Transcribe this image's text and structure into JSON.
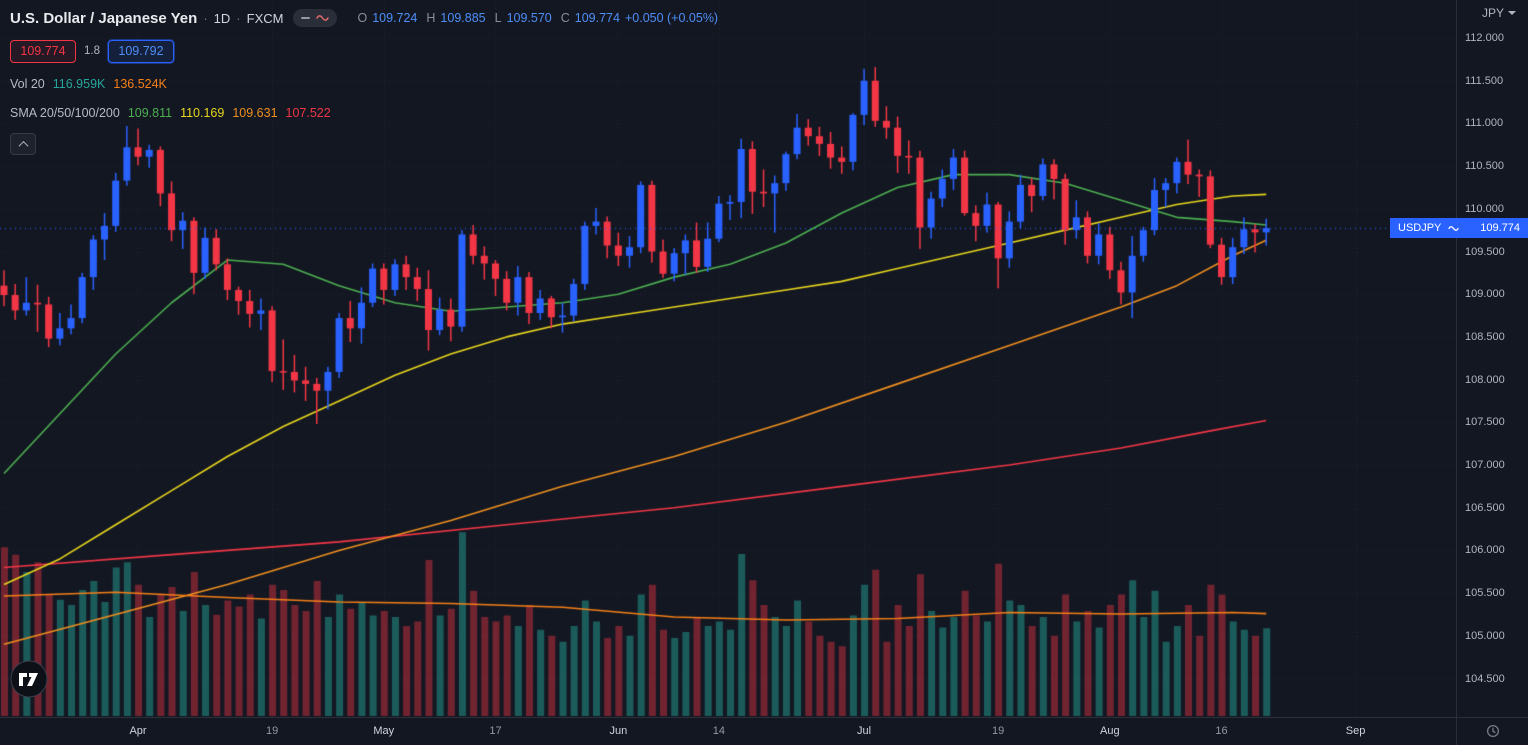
{
  "colors": {
    "background": "#131722",
    "up": "#2962ff",
    "down": "#f23645",
    "text_blue": "#4e8ef7",
    "vol_up": "rgba(34,150,138,0.55)",
    "vol_down": "rgba(242,54,69,0.42)",
    "sma20": "#4caf50",
    "sma50": "#e7d51c",
    "sma100": "#ef8f1f",
    "sma200": "#f23645",
    "vol_ma": "#f57f17",
    "axis_text": "#b2b5be",
    "grid": "rgba(178,181,190,0.09)"
  },
  "header": {
    "symbol_title": "U.S. Dollar / Japanese Yen",
    "separator": "·",
    "interval": "1D",
    "exchange": "FXCM",
    "status_icons": [
      "minus-icon",
      "wave-icon"
    ],
    "ohlc": {
      "o_label": "O",
      "o": "109.724",
      "h_label": "H",
      "h": "109.885",
      "l_label": "L",
      "l": "109.570",
      "c_label": "C",
      "c": "109.774",
      "change": "+0.050 (+0.05%)"
    }
  },
  "trade_panel": {
    "sell": "109.774",
    "spread": "1.8",
    "buy": "109.792"
  },
  "volume_legend": {
    "label": "Vol 20",
    "value": "116.959K",
    "ma_value": "136.524K"
  },
  "sma_legend": {
    "label": "SMA 20/50/100/200",
    "sma20": "109.811",
    "sma50": "110.169",
    "sma100": "109.631",
    "sma200": "107.522"
  },
  "price_scale_header": {
    "currency": "JPY"
  },
  "price_tag": {
    "symbol": "USDJPY",
    "price": "109.774"
  },
  "chart_data": {
    "type": "candlestick",
    "symbol": "USDJPY",
    "interval": "1D",
    "exchange": "FXCM",
    "last_price": 109.774,
    "price_axis": {
      "min": 104.5,
      "max": 112.0,
      "step": 0.5,
      "decimals": 3,
      "unit": "JPY"
    },
    "time_axis": [
      {
        "label": "Apr",
        "i": 12,
        "month": true
      },
      {
        "label": "19",
        "i": 24,
        "month": false
      },
      {
        "label": "May",
        "i": 34,
        "month": true
      },
      {
        "label": "17",
        "i": 44,
        "month": false
      },
      {
        "label": "Jun",
        "i": 55,
        "month": true
      },
      {
        "label": "14",
        "i": 64,
        "month": false
      },
      {
        "label": "Jul",
        "i": 77,
        "month": true
      },
      {
        "label": "19",
        "i": 89,
        "month": false
      },
      {
        "label": "Aug",
        "i": 99,
        "month": true
      },
      {
        "label": "16",
        "i": 109,
        "month": false
      },
      {
        "label": "Sep",
        "i": 121,
        "month": true
      }
    ],
    "candles": [
      [
        109.1,
        109.28,
        108.86,
        108.99
      ],
      [
        108.99,
        109.12,
        108.7,
        108.81
      ],
      [
        108.81,
        109.2,
        108.75,
        108.9
      ],
      [
        108.9,
        109.11,
        108.56,
        108.88
      ],
      [
        108.88,
        108.97,
        108.38,
        108.48
      ],
      [
        108.48,
        108.78,
        108.4,
        108.6
      ],
      [
        108.6,
        108.88,
        108.53,
        108.72
      ],
      [
        108.72,
        109.25,
        108.66,
        109.2
      ],
      [
        109.2,
        109.69,
        109.05,
        109.64
      ],
      [
        109.64,
        109.95,
        109.4,
        109.8
      ],
      [
        109.8,
        110.42,
        109.73,
        110.33
      ],
      [
        110.33,
        110.97,
        110.27,
        110.72
      ],
      [
        110.72,
        110.94,
        110.51,
        110.61
      ],
      [
        110.61,
        110.75,
        110.48,
        110.69
      ],
      [
        110.69,
        110.73,
        110.03,
        110.18
      ],
      [
        110.18,
        110.32,
        109.62,
        109.75
      ],
      [
        109.75,
        109.96,
        109.53,
        109.86
      ],
      [
        109.86,
        109.9,
        109.0,
        109.25
      ],
      [
        109.25,
        109.78,
        109.18,
        109.66
      ],
      [
        109.66,
        109.76,
        109.28,
        109.35
      ],
      [
        109.35,
        109.42,
        108.93,
        109.05
      ],
      [
        109.05,
        109.09,
        108.76,
        108.92
      ],
      [
        108.92,
        109.05,
        108.61,
        108.77
      ],
      [
        108.77,
        108.95,
        108.58,
        108.81
      ],
      [
        108.81,
        108.86,
        107.97,
        108.1
      ],
      [
        108.1,
        108.47,
        107.88,
        108.09
      ],
      [
        108.09,
        108.29,
        107.85,
        107.99
      ],
      [
        107.99,
        108.15,
        107.75,
        107.95
      ],
      [
        107.95,
        108.02,
        107.48,
        107.87
      ],
      [
        107.87,
        108.15,
        107.65,
        108.09
      ],
      [
        108.09,
        108.78,
        108.02,
        108.72
      ],
      [
        108.72,
        108.92,
        108.44,
        108.6
      ],
      [
        108.6,
        109.08,
        108.42,
        108.9
      ],
      [
        108.9,
        109.36,
        108.85,
        109.3
      ],
      [
        109.3,
        109.36,
        108.88,
        109.05
      ],
      [
        109.05,
        109.41,
        108.98,
        109.35
      ],
      [
        109.35,
        109.45,
        109.05,
        109.2
      ],
      [
        109.2,
        109.31,
        108.92,
        109.06
      ],
      [
        109.06,
        109.28,
        108.34,
        108.58
      ],
      [
        108.58,
        108.96,
        108.52,
        108.82
      ],
      [
        108.82,
        108.95,
        108.45,
        108.62
      ],
      [
        108.62,
        109.75,
        108.56,
        109.7
      ],
      [
        109.7,
        109.81,
        109.35,
        109.45
      ],
      [
        109.45,
        109.56,
        109.17,
        109.36
      ],
      [
        109.36,
        109.4,
        108.98,
        109.18
      ],
      [
        109.18,
        109.27,
        108.81,
        108.9
      ],
      [
        108.9,
        109.33,
        108.75,
        109.2
      ],
      [
        109.2,
        109.26,
        108.65,
        108.78
      ],
      [
        108.78,
        109.05,
        108.7,
        108.95
      ],
      [
        108.95,
        108.98,
        108.6,
        108.73
      ],
      [
        108.73,
        108.9,
        108.55,
        108.75
      ],
      [
        108.75,
        109.18,
        108.68,
        109.12
      ],
      [
        109.12,
        109.85,
        109.05,
        109.8
      ],
      [
        109.8,
        110.01,
        109.7,
        109.85
      ],
      [
        109.85,
        109.91,
        109.42,
        109.57
      ],
      [
        109.57,
        109.72,
        109.33,
        109.45
      ],
      [
        109.45,
        109.68,
        109.31,
        109.55
      ],
      [
        109.55,
        110.32,
        109.48,
        110.28
      ],
      [
        110.28,
        110.33,
        109.37,
        109.5
      ],
      [
        109.5,
        109.64,
        109.19,
        109.24
      ],
      [
        109.24,
        109.54,
        109.15,
        109.48
      ],
      [
        109.48,
        109.7,
        109.23,
        109.63
      ],
      [
        109.63,
        109.84,
        109.25,
        109.32
      ],
      [
        109.32,
        109.84,
        109.26,
        109.65
      ],
      [
        109.65,
        110.15,
        109.61,
        110.06
      ],
      [
        110.06,
        110.16,
        109.87,
        110.08
      ],
      [
        110.08,
        110.82,
        109.89,
        110.7
      ],
      [
        110.7,
        110.79,
        109.94,
        110.2
      ],
      [
        110.2,
        110.46,
        110.02,
        110.18
      ],
      [
        110.18,
        110.39,
        109.72,
        110.3
      ],
      [
        110.3,
        110.67,
        110.21,
        110.64
      ],
      [
        110.64,
        111.11,
        110.58,
        110.95
      ],
      [
        110.95,
        111.05,
        110.74,
        110.85
      ],
      [
        110.85,
        110.96,
        110.62,
        110.76
      ],
      [
        110.76,
        110.9,
        110.47,
        110.6
      ],
      [
        110.6,
        110.73,
        110.41,
        110.55
      ],
      [
        110.55,
        111.12,
        110.45,
        111.1
      ],
      [
        111.1,
        111.64,
        110.98,
        111.5
      ],
      [
        111.5,
        111.66,
        110.96,
        111.03
      ],
      [
        111.03,
        111.2,
        110.82,
        110.95
      ],
      [
        110.95,
        111.08,
        110.42,
        110.62
      ],
      [
        110.62,
        110.8,
        110.41,
        110.6
      ],
      [
        110.6,
        110.68,
        109.53,
        109.78
      ],
      [
        109.78,
        110.2,
        109.65,
        110.12
      ],
      [
        110.12,
        110.46,
        110.02,
        110.35
      ],
      [
        110.35,
        110.7,
        110.22,
        110.6
      ],
      [
        110.6,
        110.68,
        109.92,
        109.95
      ],
      [
        109.95,
        110.04,
        109.62,
        109.8
      ],
      [
        109.8,
        110.19,
        109.72,
        110.05
      ],
      [
        110.05,
        110.08,
        109.07,
        109.42
      ],
      [
        109.42,
        109.97,
        109.31,
        109.85
      ],
      [
        109.85,
        110.4,
        109.77,
        110.28
      ],
      [
        110.28,
        110.36,
        109.96,
        110.15
      ],
      [
        110.15,
        110.59,
        110.1,
        110.52
      ],
      [
        110.52,
        110.58,
        110.11,
        110.35
      ],
      [
        110.35,
        110.41,
        109.58,
        109.75
      ],
      [
        109.75,
        110.1,
        109.65,
        109.9
      ],
      [
        109.9,
        109.97,
        109.36,
        109.45
      ],
      [
        109.45,
        109.83,
        109.35,
        109.7
      ],
      [
        109.7,
        109.79,
        109.18,
        109.28
      ],
      [
        109.28,
        109.38,
        108.88,
        109.02
      ],
      [
        109.02,
        109.68,
        108.72,
        109.45
      ],
      [
        109.45,
        109.79,
        109.38,
        109.75
      ],
      [
        109.75,
        110.36,
        109.69,
        110.22
      ],
      [
        110.22,
        110.36,
        110.02,
        110.3
      ],
      [
        110.3,
        110.6,
        110.18,
        110.55
      ],
      [
        110.55,
        110.81,
        110.29,
        110.4
      ],
      [
        110.4,
        110.46,
        110.14,
        110.38
      ],
      [
        110.38,
        110.45,
        109.54,
        109.58
      ],
      [
        109.58,
        109.66,
        109.11,
        109.2
      ],
      [
        109.2,
        109.66,
        109.12,
        109.55
      ],
      [
        109.55,
        109.9,
        109.47,
        109.76
      ],
      [
        109.76,
        109.82,
        109.49,
        109.724
      ],
      [
        109.724,
        109.885,
        109.57,
        109.774
      ]
    ],
    "volumes_k": [
      225,
      215,
      192,
      205,
      162,
      155,
      148,
      168,
      180,
      152,
      198,
      205,
      175,
      132,
      162,
      172,
      140,
      192,
      148,
      135,
      154,
      146,
      162,
      130,
      175,
      168,
      148,
      140,
      180,
      132,
      162,
      143,
      151,
      134,
      140,
      132,
      120,
      126,
      208,
      134,
      143,
      245,
      167,
      132,
      126,
      134,
      120,
      148,
      115,
      107,
      99,
      120,
      154,
      126,
      104,
      120,
      107,
      162,
      175,
      115,
      104,
      112,
      132,
      120,
      126,
      115,
      216,
      181,
      148,
      132,
      120,
      154,
      126,
      107,
      99,
      93,
      134,
      175,
      195,
      99,
      148,
      120,
      189,
      140,
      118,
      132,
      167,
      134,
      126,
      203,
      154,
      148,
      120,
      132,
      107,
      162,
      126,
      140,
      118,
      148,
      162,
      181,
      132,
      167,
      99,
      120,
      148,
      107,
      175,
      162,
      126,
      115,
      107,
      117
    ],
    "overlays": [
      {
        "name": "SMA 200",
        "color_key": "sma200",
        "scale": "price",
        "points": [
          [
            0,
            105.8
          ],
          [
            15,
            105.95
          ],
          [
            30,
            106.1
          ],
          [
            45,
            106.3
          ],
          [
            60,
            106.5
          ],
          [
            75,
            106.75
          ],
          [
            90,
            107.0
          ],
          [
            100,
            107.2
          ],
          [
            108,
            107.4
          ],
          [
            113,
            107.522
          ]
        ]
      },
      {
        "name": "SMA 100",
        "color_key": "sma100",
        "scale": "price",
        "points": [
          [
            0,
            104.9
          ],
          [
            10,
            105.25
          ],
          [
            20,
            105.6
          ],
          [
            30,
            106.0
          ],
          [
            40,
            106.35
          ],
          [
            50,
            106.75
          ],
          [
            60,
            107.1
          ],
          [
            70,
            107.5
          ],
          [
            80,
            107.95
          ],
          [
            90,
            108.4
          ],
          [
            100,
            108.85
          ],
          [
            105,
            109.1
          ],
          [
            110,
            109.45
          ],
          [
            113,
            109.631
          ]
        ]
      },
      {
        "name": "SMA 50",
        "color_key": "sma50",
        "scale": "price",
        "points": [
          [
            0,
            105.6
          ],
          [
            5,
            105.9
          ],
          [
            10,
            106.3
          ],
          [
            15,
            106.7
          ],
          [
            20,
            107.1
          ],
          [
            25,
            107.45
          ],
          [
            30,
            107.75
          ],
          [
            35,
            108.05
          ],
          [
            40,
            108.3
          ],
          [
            45,
            108.5
          ],
          [
            50,
            108.65
          ],
          [
            55,
            108.75
          ],
          [
            60,
            108.85
          ],
          [
            65,
            108.95
          ],
          [
            70,
            109.05
          ],
          [
            75,
            109.15
          ],
          [
            80,
            109.3
          ],
          [
            85,
            109.45
          ],
          [
            90,
            109.6
          ],
          [
            95,
            109.75
          ],
          [
            100,
            109.9
          ],
          [
            105,
            110.05
          ],
          [
            110,
            110.15
          ],
          [
            113,
            110.169
          ]
        ]
      },
      {
        "name": "SMA 20",
        "color_key": "sma20",
        "scale": "price",
        "points": [
          [
            0,
            106.9
          ],
          [
            5,
            107.6
          ],
          [
            10,
            108.3
          ],
          [
            15,
            108.9
          ],
          [
            20,
            109.4
          ],
          [
            25,
            109.35
          ],
          [
            30,
            109.1
          ],
          [
            35,
            108.9
          ],
          [
            40,
            108.8
          ],
          [
            45,
            108.85
          ],
          [
            50,
            108.9
          ],
          [
            55,
            109.0
          ],
          [
            60,
            109.2
          ],
          [
            65,
            109.35
          ],
          [
            70,
            109.6
          ],
          [
            75,
            109.95
          ],
          [
            80,
            110.25
          ],
          [
            85,
            110.4
          ],
          [
            90,
            110.4
          ],
          [
            95,
            110.3
          ],
          [
            100,
            110.1
          ],
          [
            105,
            109.9
          ],
          [
            110,
            109.85
          ],
          [
            113,
            109.811
          ]
        ]
      },
      {
        "name": "Volume MA 20",
        "color_key": "vol_ma",
        "scale": "volume",
        "points": [
          [
            0,
            160
          ],
          [
            10,
            165
          ],
          [
            20,
            158
          ],
          [
            30,
            152
          ],
          [
            40,
            150
          ],
          [
            50,
            145
          ],
          [
            60,
            132
          ],
          [
            70,
            128
          ],
          [
            80,
            130
          ],
          [
            90,
            138
          ],
          [
            100,
            136
          ],
          [
            110,
            138
          ],
          [
            113,
            136.5
          ]
        ]
      }
    ]
  }
}
